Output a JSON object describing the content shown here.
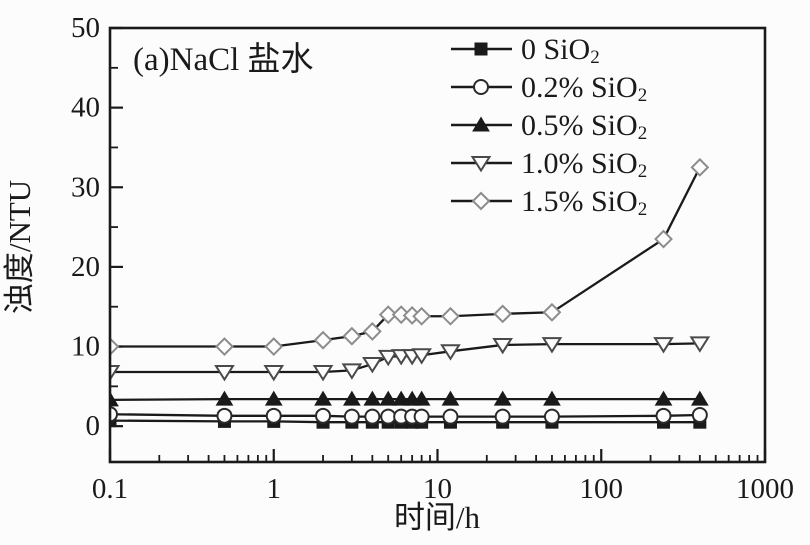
{
  "figure": {
    "annotation": "(a)NaCl 盐水",
    "background": "#fcfcfc",
    "ink": "#1a1a1a"
  },
  "chart_data": {
    "type": "line",
    "title": "(a)NaCl 盐水",
    "xlabel": "时间/h",
    "ylabel": "浊度/NTU",
    "x_scale": "log",
    "xlim": [
      0.1,
      1000
    ],
    "ylim": [
      -4.5,
      50
    ],
    "x_ticks": [
      0.1,
      1,
      10,
      100,
      1000
    ],
    "x_tick_labels": [
      "0.1",
      "1",
      "10",
      "100",
      "1000"
    ],
    "y_ticks": [
      0,
      10,
      20,
      30,
      40,
      50
    ],
    "y_minor_ticks": [
      5,
      15,
      25,
      35,
      45
    ],
    "grid": false,
    "legend_position": "upper-right-inside",
    "x": [
      0.1,
      0.5,
      1,
      2,
      3,
      4,
      5,
      6,
      7,
      8,
      12,
      25,
      50,
      240,
      400
    ],
    "series": [
      {
        "name": "0 SiO₂",
        "marker": "filled-square",
        "line_color": "#1a1a1a",
        "marker_stroke": "#1a1a1a",
        "marker_fill": "#1a1a1a",
        "values": [
          0.7,
          0.6,
          0.6,
          0.5,
          0.5,
          0.5,
          0.5,
          0.5,
          0.5,
          0.5,
          0.5,
          0.5,
          0.5,
          0.5,
          0.5
        ]
      },
      {
        "name": "0.2% SiO₂",
        "marker": "open-circle",
        "line_color": "#1a1a1a",
        "marker_stroke": "#2a2a2a",
        "marker_fill": "#fdfdfd",
        "values": [
          1.5,
          1.3,
          1.3,
          1.3,
          1.2,
          1.2,
          1.2,
          1.2,
          1.2,
          1.2,
          1.2,
          1.2,
          1.2,
          1.3,
          1.4
        ]
      },
      {
        "name": "0.5% SiO₂",
        "marker": "filled-triangle-up",
        "line_color": "#1a1a1a",
        "marker_stroke": "#1a1a1a",
        "marker_fill": "#1a1a1a",
        "values": [
          3.3,
          3.4,
          3.4,
          3.4,
          3.4,
          3.4,
          3.4,
          3.4,
          3.4,
          3.4,
          3.4,
          3.4,
          3.4,
          3.4,
          3.4
        ]
      },
      {
        "name": "1.0% SiO₂",
        "marker": "open-triangle-down",
        "line_color": "#1a1a1a",
        "marker_stroke": "#4a4a4a",
        "marker_fill": "#fdfdfd",
        "values": [
          6.8,
          6.8,
          6.8,
          6.8,
          7.0,
          7.8,
          8.7,
          8.8,
          8.8,
          8.9,
          9.4,
          10.2,
          10.3,
          10.3,
          10.4
        ]
      },
      {
        "name": "1.5% SiO₂",
        "marker": "open-diamond",
        "line_color": "#1a1a1a",
        "marker_stroke": "#8c8c8c",
        "marker_fill": "#fdfdfd",
        "values": [
          10,
          10,
          10,
          10.8,
          11.3,
          11.9,
          14.0,
          14.0,
          13.9,
          13.8,
          13.8,
          14.1,
          14.3,
          23.5,
          32.5
        ]
      }
    ]
  }
}
